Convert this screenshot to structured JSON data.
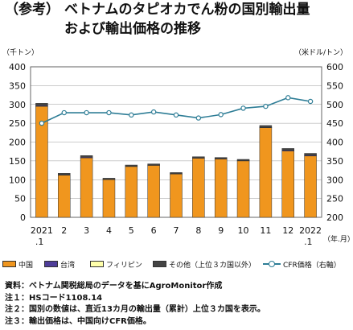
{
  "title": {
    "prefix": "（参考）",
    "line1": "ベトナムのタピオカでん粉の国別輸出量",
    "line2": "および輸出価格の推移"
  },
  "chart_data": {
    "type": "bar",
    "left_unit": "（千トン）",
    "right_unit": "（米ドル/トン）",
    "x_unit": "（年.月）",
    "categories": [
      "2021\n.1",
      "2",
      "3",
      "4",
      "5",
      "6",
      "7",
      "8",
      "9",
      "10",
      "11",
      "12",
      "2022\n.1"
    ],
    "ylim_left": [
      0,
      400
    ],
    "yticks_left": [
      0,
      50,
      100,
      150,
      200,
      250,
      300,
      350,
      400
    ],
    "ylim_right": [
      200,
      600
    ],
    "yticks_right": [
      200,
      250,
      300,
      350,
      400,
      450,
      500,
      550,
      600
    ],
    "grid": true,
    "series": [
      {
        "name": "中国",
        "color": "#f0961e",
        "values": [
          295,
          112,
          158,
          100,
          135,
          138,
          115,
          157,
          155,
          150,
          238,
          176,
          163
        ]
      },
      {
        "name": "台湾",
        "color": "#4e3d99",
        "values": [
          2,
          1,
          2,
          1,
          1,
          1,
          1,
          1,
          1,
          1,
          1,
          2,
          2
        ]
      },
      {
        "name": "フィリピン",
        "color": "#ffffaa",
        "values": [
          0,
          0,
          0,
          0,
          0,
          0,
          0,
          0,
          0,
          0,
          0,
          0,
          0
        ]
      },
      {
        "name": "その他（上位３カ国以外）",
        "color": "#444444",
        "values": [
          6,
          4,
          4,
          3,
          3,
          3,
          3,
          3,
          3,
          3,
          5,
          5,
          5
        ]
      }
    ],
    "line_series": {
      "name": "CFR価格（右軸）",
      "color": "#2e7d96",
      "axis": "right",
      "values": [
        450,
        478,
        478,
        478,
        472,
        480,
        472,
        464,
        473,
        490,
        495,
        518,
        508
      ]
    }
  },
  "notes": [
    "資料：ベトナム関税総局のデータを基にAgroMonitor作成",
    "注１：HSコード1108.14",
    "注２：国別の数値は、直近13カ月の輸出量（累計）上位３カ国を表示。",
    "注３：輸出価格は、中国向けCFR価格。"
  ]
}
